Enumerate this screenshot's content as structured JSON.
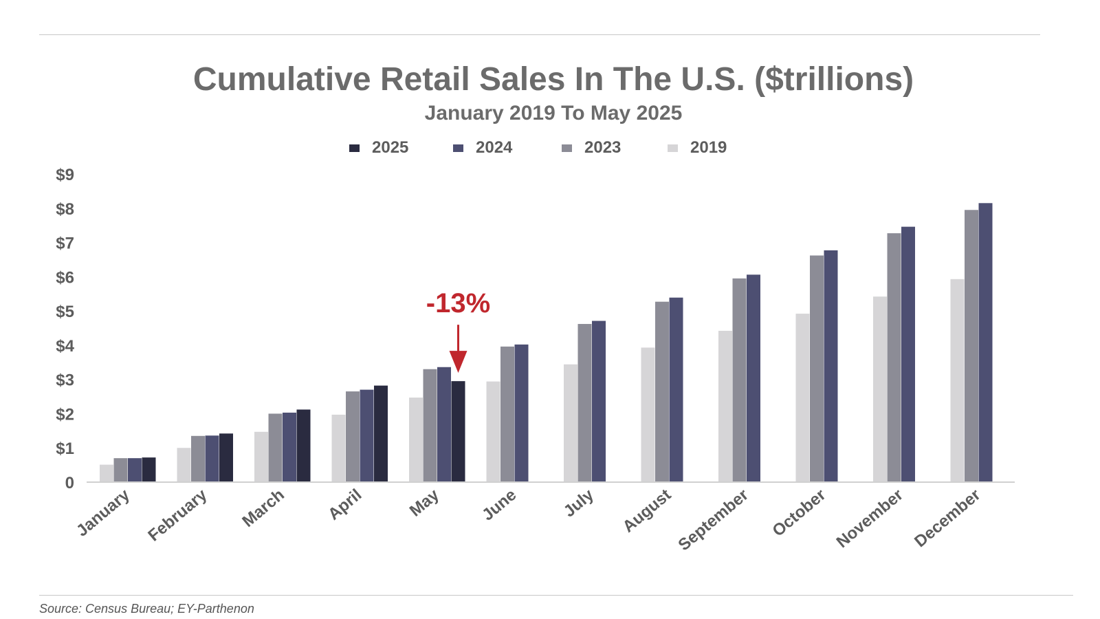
{
  "colors": {
    "s2025": "#2a2b40",
    "s2024": "#4d4f72",
    "s2023": "#8c8c96",
    "s2019": "#d6d5d7",
    "annotation": "#c0272d",
    "axis_text": "#5c5c5c"
  },
  "chart_data": {
    "type": "bar",
    "title": "Cumulative Retail Sales In The U.S. ($trillions)",
    "subtitle": "January 2019 To May 2025",
    "xlabel": "",
    "ylabel": "",
    "ylim": [
      0,
      9
    ],
    "yticks": [
      {
        "value": 0,
        "label": "0"
      },
      {
        "value": 1,
        "label": "$1"
      },
      {
        "value": 2,
        "label": "$2"
      },
      {
        "value": 3,
        "label": "$3"
      },
      {
        "value": 4,
        "label": "$4"
      },
      {
        "value": 5,
        "label": "$5"
      },
      {
        "value": 6,
        "label": "$6"
      },
      {
        "value": 7,
        "label": "$7"
      },
      {
        "value": 8,
        "label": "$8"
      },
      {
        "value": 9,
        "label": "$9"
      }
    ],
    "grid": false,
    "legend_position": "top-center",
    "categories": [
      "January",
      "February",
      "March",
      "April",
      "May",
      "June",
      "July",
      "August",
      "September",
      "October",
      "November",
      "December"
    ],
    "series": [
      {
        "name": "2019",
        "color_key": "s2019",
        "values": [
          0.51,
          1.0,
          1.47,
          1.97,
          2.47,
          2.94,
          3.44,
          3.93,
          4.42,
          4.92,
          5.42,
          5.93
        ]
      },
      {
        "name": "2023",
        "color_key": "s2023",
        "values": [
          0.7,
          1.35,
          2.0,
          2.65,
          3.3,
          3.96,
          4.62,
          5.27,
          5.95,
          6.62,
          7.27,
          7.95
        ]
      },
      {
        "name": "2024",
        "color_key": "s2024",
        "values": [
          0.7,
          1.36,
          2.03,
          2.7,
          3.36,
          4.02,
          4.71,
          5.39,
          6.06,
          6.77,
          7.46,
          8.15
        ]
      },
      {
        "name": "2025",
        "color_key": "s2025",
        "values": [
          0.72,
          1.42,
          2.12,
          2.82,
          2.95,
          null,
          null,
          null,
          null,
          null,
          null,
          null
        ]
      }
    ],
    "legend_order": [
      "2025",
      "2024",
      "2023",
      "2019"
    ],
    "annotations": [
      {
        "text": "-13%",
        "category": "May",
        "series": "2025",
        "arrow": "down"
      }
    ],
    "source": "Source: Census Bureau; EY-Parthenon"
  }
}
